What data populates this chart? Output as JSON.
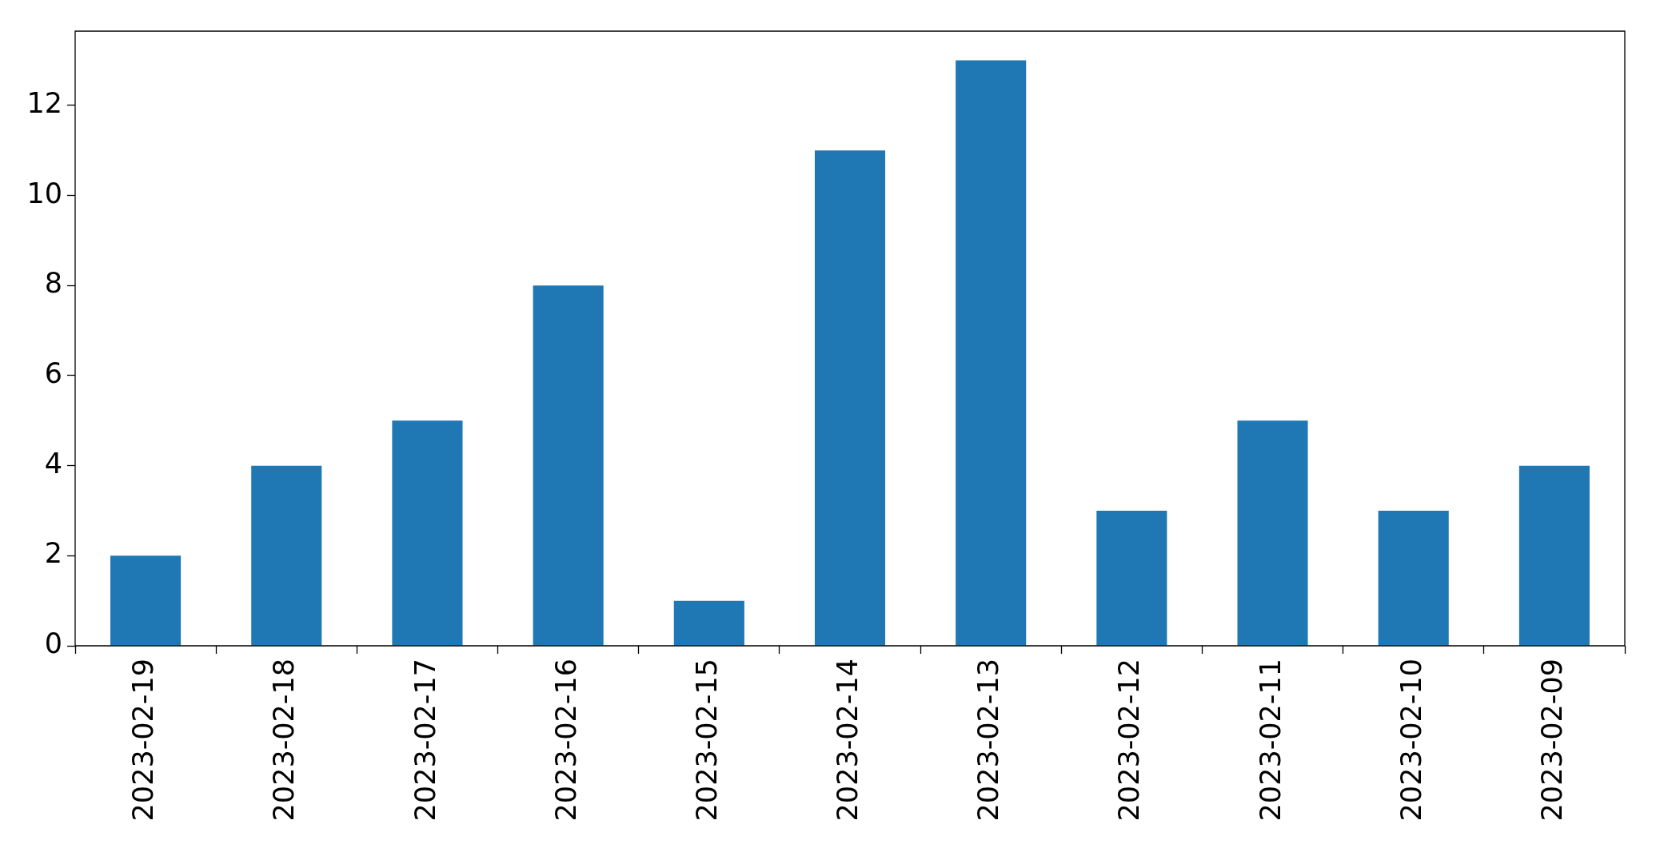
{
  "chart_data": {
    "type": "bar",
    "categories": [
      "2023-02-19",
      "2023-02-18",
      "2023-02-17",
      "2023-02-16",
      "2023-02-15",
      "2023-02-14",
      "2023-02-13",
      "2023-02-12",
      "2023-02-11",
      "2023-02-10",
      "2023-02-09"
    ],
    "values": [
      2,
      4,
      5,
      8,
      1,
      11,
      13,
      3,
      5,
      3,
      4
    ],
    "color": "#1f77b4",
    "ylim": [
      0,
      13.65
    ],
    "yticks": [
      0,
      2,
      4,
      6,
      8,
      10,
      12
    ]
  }
}
